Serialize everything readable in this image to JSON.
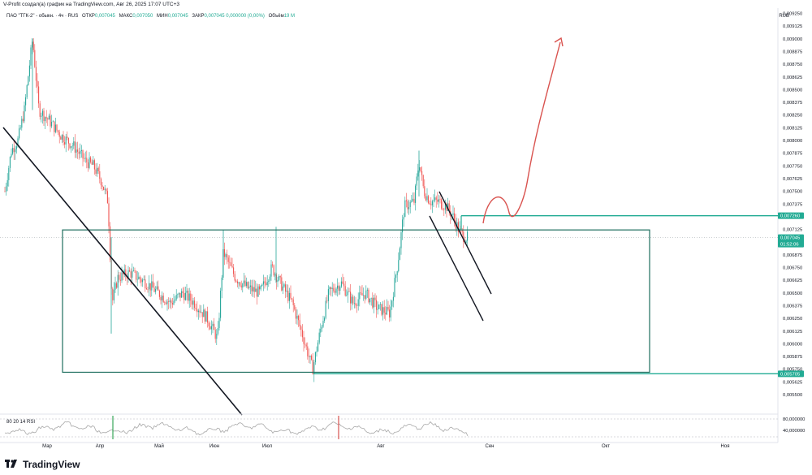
{
  "header": {
    "attribution": "V-Profit создал(а) график на TradingView.com, Авг 26, 2025 17:07 UTC+3"
  },
  "symbol": {
    "name": "ПАО \"ТГК-2\" - обыкн. · 4ч · RUS",
    "open_label": "ОТКР",
    "open_value": "0,007045",
    "high_label": "МАКС",
    "high_value": "0,007050",
    "low_label": "МИН",
    "low_value": "0,007045",
    "close_label": "ЗАКР",
    "close_value": "0,007045",
    "change_value": "0,000000 (0,00%)",
    "volume_label": "Объём",
    "volume_value": "19 M"
  },
  "currency": "RUB",
  "indicator": {
    "label": "80 20 14 RSI"
  },
  "branding": {
    "logo_text": "TradingView"
  },
  "colors": {
    "up": "#26a69a",
    "down": "#ef5350",
    "box": "#1e6e5e",
    "level": "#22ab94",
    "trend": "#131722",
    "arrow": "#d9534f",
    "rsi": "#a8a8a8"
  },
  "chart_data": {
    "type": "candlestick",
    "price_axis": {
      "ticks": [
        "0,009250",
        "0,009125",
        "0,009000",
        "0,008875",
        "0,008750",
        "0,008625",
        "0,008500",
        "0,008375",
        "0,008250",
        "0,008125",
        "0,008000",
        "0,007875",
        "0,007750",
        "0,007625",
        "0,007500",
        "0,007375",
        "0,007125",
        "0,007000",
        "0,006875",
        "0,006750",
        "0,006625",
        "0,006500",
        "0,006375",
        "0,006250",
        "0,006125",
        "0,006000",
        "0,005875",
        "0,005750",
        "0,005625",
        "0,005500"
      ],
      "ylim": [
        0.0054,
        0.0093
      ]
    },
    "price_labels": [
      {
        "text": "0,007260",
        "price": 0.00726
      },
      {
        "text": "0,007045",
        "price": 0.007045,
        "sub": "01:52:06"
      },
      {
        "text": "0,005705",
        "price": 0.005705
      }
    ],
    "time_axis": [
      "Мар",
      "Апр",
      "Май",
      "Июн",
      "Июл",
      "Авг",
      "Сен",
      "Окт",
      "Ноя"
    ],
    "rsi_axis": [
      "80,000000",
      "40,000000"
    ],
    "rsi_levels": [
      80,
      20
    ],
    "drawings": {
      "range_box": {
        "x_from": "2025-02-20",
        "x_to": "2025-10-21",
        "price_top": 0.00712,
        "price_bottom": 0.00572
      },
      "support_line": {
        "x_from": "2025-07-17",
        "x_to": "2025-12-31",
        "price": 0.005705
      },
      "resistance_line": {
        "x_from": "2025-08-25",
        "x_to": "2025-12-31",
        "price": 0.00726
      }
    },
    "series_summary": {
      "start_price": 0.0075,
      "high_price": 0.009,
      "low_price": 0.0057,
      "last_price": 0.007045
    }
  }
}
